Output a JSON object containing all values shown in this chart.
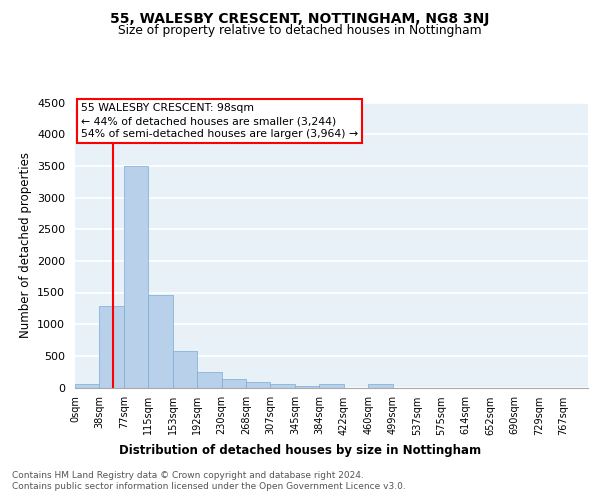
{
  "title": "55, WALESBY CRESCENT, NOTTINGHAM, NG8 3NJ",
  "subtitle": "Size of property relative to detached houses in Nottingham",
  "xlabel": "Distribution of detached houses by size in Nottingham",
  "ylabel": "Number of detached properties",
  "bar_color": "#b8d0ea",
  "bar_edge_color": "#7aacd4",
  "background_color": "#e8f0f8",
  "grid_color": "#ffffff",
  "categories": [
    "0sqm",
    "38sqm",
    "77sqm",
    "115sqm",
    "153sqm",
    "192sqm",
    "230sqm",
    "268sqm",
    "307sqm",
    "345sqm",
    "384sqm",
    "422sqm",
    "460sqm",
    "499sqm",
    "537sqm",
    "575sqm",
    "614sqm",
    "652sqm",
    "690sqm",
    "729sqm",
    "767sqm"
  ],
  "values": [
    50,
    1280,
    3500,
    1460,
    580,
    250,
    140,
    90,
    50,
    30,
    50,
    0,
    60,
    0,
    0,
    0,
    0,
    0,
    0,
    0,
    0
  ],
  "red_line_x": 1.55,
  "annotation_line1": "55 WALESBY CRESCENT: 98sqm",
  "annotation_line2": "← 44% of detached houses are smaller (3,244)",
  "annotation_line3": "54% of semi-detached houses are larger (3,964) →",
  "ylim": [
    0,
    4500
  ],
  "yticks": [
    0,
    500,
    1000,
    1500,
    2000,
    2500,
    3000,
    3500,
    4000,
    4500
  ],
  "footnote1": "Contains HM Land Registry data © Crown copyright and database right 2024.",
  "footnote2": "Contains public sector information licensed under the Open Government Licence v3.0."
}
